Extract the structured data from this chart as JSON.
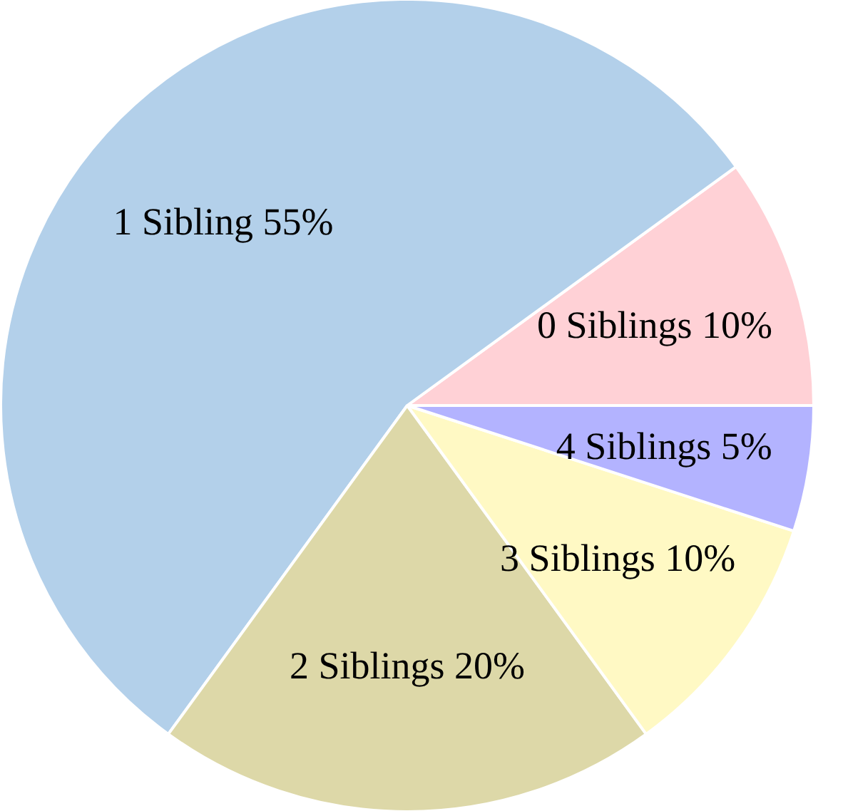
{
  "chart_data": {
    "type": "pie",
    "categories": [
      "0 Siblings",
      "1 Sibling",
      "2 Siblings",
      "3 Siblings",
      "4 Siblings"
    ],
    "values": [
      10,
      55,
      20,
      10,
      5
    ],
    "value_labels": [
      "10%",
      "55%",
      "20%",
      "10%",
      "5%"
    ],
    "colors": [
      "#ffd1d6",
      "#b3d0ea",
      "#ddd8a8",
      "#fff9c4",
      "#b3b3ff"
    ]
  }
}
